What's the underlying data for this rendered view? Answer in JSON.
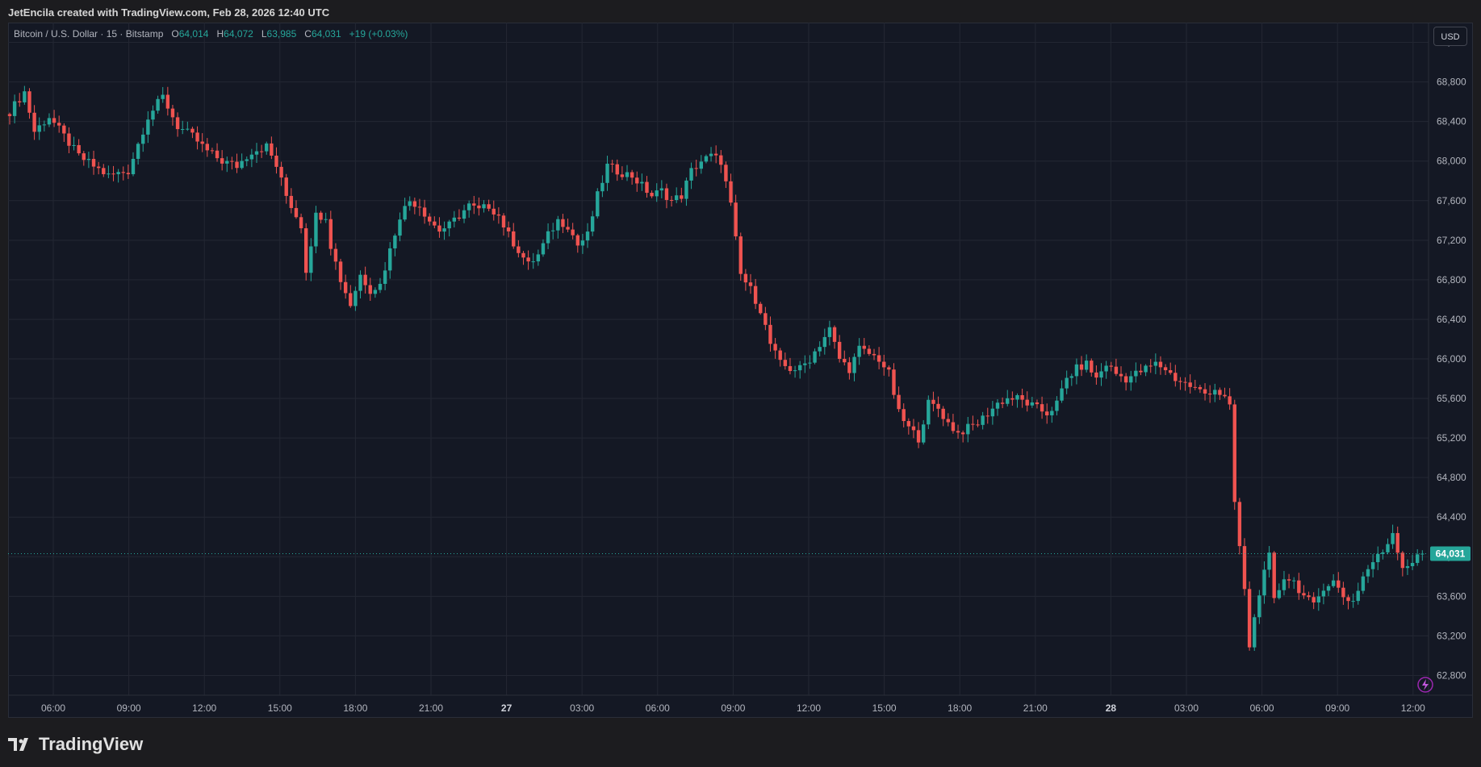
{
  "caption": "JetEncila created with TradingView.com, Feb 28, 2026 12:40 UTC",
  "legend": {
    "symbol": "Bitcoin / U.S. Dollar · 15 · Bitstamp",
    "o_label": "O",
    "o_value": "64,014",
    "h_label": "H",
    "h_value": "64,072",
    "l_label": "L",
    "l_value": "63,985",
    "c_label": "C",
    "c_value": "64,031",
    "change": "+19 (+0.03%)"
  },
  "currency": "USD",
  "brand": "TradingView",
  "colors": {
    "up": "#26a69a",
    "down": "#ef5350",
    "background": "#141824",
    "grid": "#232733",
    "axis_text": "#b2b5be",
    "price_tag": "#26a69a"
  },
  "chart_data": {
    "type": "candlestick",
    "ylim": [
      62600,
      69400
    ],
    "y_ticks": [
      62800,
      63200,
      63600,
      64000,
      64400,
      64800,
      65200,
      65600,
      66000,
      66400,
      66800,
      67200,
      67600,
      68000,
      68400,
      68800,
      69200
    ],
    "y_tick_labels": [
      "62,800",
      "63,200",
      "63,600",
      "64,000",
      "64,400",
      "64,800",
      "65,200",
      "65,600",
      "66,000",
      "66,400",
      "66,800",
      "67,200",
      "67,600",
      "68,000",
      "68,400",
      "68,800",
      "69,200"
    ],
    "x_tick_labels": [
      "06:00",
      "09:00",
      "12:00",
      "15:00",
      "18:00",
      "21:00",
      "27",
      "03:00",
      "06:00",
      "09:00",
      "12:00",
      "15:00",
      "18:00",
      "21:00",
      "28",
      "03:00",
      "06:00",
      "09:00",
      "12:00"
    ],
    "last_price": 64031,
    "last_price_label": "64,031",
    "path_points": [
      [
        0,
        68500
      ],
      [
        3,
        68700
      ],
      [
        5,
        68300
      ],
      [
        8,
        68450
      ],
      [
        11,
        68250
      ],
      [
        14,
        68050
      ],
      [
        17,
        67950
      ],
      [
        20,
        67850
      ],
      [
        24,
        67900
      ],
      [
        28,
        68450
      ],
      [
        31,
        68650
      ],
      [
        34,
        68350
      ],
      [
        37,
        68250
      ],
      [
        40,
        68100
      ],
      [
        43,
        68000
      ],
      [
        46,
        67950
      ],
      [
        49,
        68100
      ],
      [
        52,
        68150
      ],
      [
        54,
        67950
      ],
      [
        56,
        67650
      ],
      [
        59,
        67350
      ],
      [
        60,
        66900
      ],
      [
        62,
        67450
      ],
      [
        64,
        67450
      ],
      [
        65,
        67150
      ],
      [
        67,
        66800
      ],
      [
        69,
        66550
      ],
      [
        71,
        66850
      ],
      [
        73,
        66700
      ],
      [
        75,
        66750
      ],
      [
        77,
        67100
      ],
      [
        79,
        67450
      ],
      [
        81,
        67600
      ],
      [
        83,
        67550
      ],
      [
        85,
        67400
      ],
      [
        87,
        67300
      ],
      [
        89,
        67350
      ],
      [
        91,
        67450
      ],
      [
        93,
        67550
      ],
      [
        95,
        67500
      ],
      [
        97,
        67550
      ],
      [
        99,
        67450
      ],
      [
        101,
        67250
      ],
      [
        103,
        67100
      ],
      [
        105,
        66950
      ],
      [
        107,
        67050
      ],
      [
        109,
        67250
      ],
      [
        111,
        67400
      ],
      [
        113,
        67350
      ],
      [
        115,
        67150
      ],
      [
        117,
        67250
      ],
      [
        119,
        67650
      ],
      [
        121,
        67950
      ],
      [
        123,
        67900
      ],
      [
        126,
        67850
      ],
      [
        128,
        67750
      ],
      [
        130,
        67650
      ],
      [
        132,
        67700
      ],
      [
        134,
        67600
      ],
      [
        136,
        67650
      ],
      [
        138,
        67900
      ],
      [
        140,
        68000
      ],
      [
        142,
        68050
      ],
      [
        144,
        68000
      ],
      [
        146,
        67550
      ],
      [
        148,
        66850
      ],
      [
        150,
        66700
      ],
      [
        152,
        66500
      ],
      [
        154,
        66150
      ],
      [
        156,
        65950
      ],
      [
        158,
        65900
      ],
      [
        160,
        65900
      ],
      [
        162,
        66000
      ],
      [
        164,
        66150
      ],
      [
        166,
        66300
      ],
      [
        168,
        66000
      ],
      [
        170,
        65900
      ],
      [
        172,
        66100
      ],
      [
        174,
        66050
      ],
      [
        176,
        66000
      ],
      [
        178,
        65850
      ],
      [
        180,
        65450
      ],
      [
        182,
        65300
      ],
      [
        184,
        65200
      ],
      [
        186,
        65550
      ],
      [
        188,
        65500
      ],
      [
        190,
        65350
      ],
      [
        192,
        65250
      ],
      [
        194,
        65300
      ],
      [
        196,
        65350
      ],
      [
        198,
        65450
      ],
      [
        200,
        65550
      ],
      [
        202,
        65600
      ],
      [
        204,
        65600
      ],
      [
        206,
        65550
      ],
      [
        208,
        65500
      ],
      [
        210,
        65450
      ],
      [
        212,
        65550
      ],
      [
        214,
        65800
      ],
      [
        216,
        65900
      ],
      [
        218,
        65950
      ],
      [
        220,
        65800
      ],
      [
        222,
        65950
      ],
      [
        224,
        65850
      ],
      [
        226,
        65800
      ],
      [
        228,
        65850
      ],
      [
        230,
        65900
      ],
      [
        232,
        65950
      ],
      [
        234,
        65900
      ],
      [
        236,
        65800
      ],
      [
        238,
        65750
      ],
      [
        240,
        65700
      ],
      [
        242,
        65650
      ],
      [
        244,
        65700
      ],
      [
        246,
        65600
      ],
      [
        247,
        65500
      ],
      [
        248,
        64550
      ],
      [
        249,
        64100
      ],
      [
        250,
        63650
      ],
      [
        251,
        63100
      ],
      [
        253,
        63650
      ],
      [
        255,
        64000
      ],
      [
        256,
        63550
      ],
      [
        258,
        63800
      ],
      [
        260,
        63750
      ],
      [
        262,
        63600
      ],
      [
        264,
        63500
      ],
      [
        266,
        63700
      ],
      [
        268,
        63750
      ],
      [
        270,
        63600
      ],
      [
        272,
        63550
      ],
      [
        274,
        63800
      ],
      [
        276,
        63950
      ],
      [
        278,
        64050
      ],
      [
        280,
        64250
      ],
      [
        282,
        63900
      ],
      [
        284,
        63950
      ],
      [
        286,
        64031
      ]
    ]
  }
}
